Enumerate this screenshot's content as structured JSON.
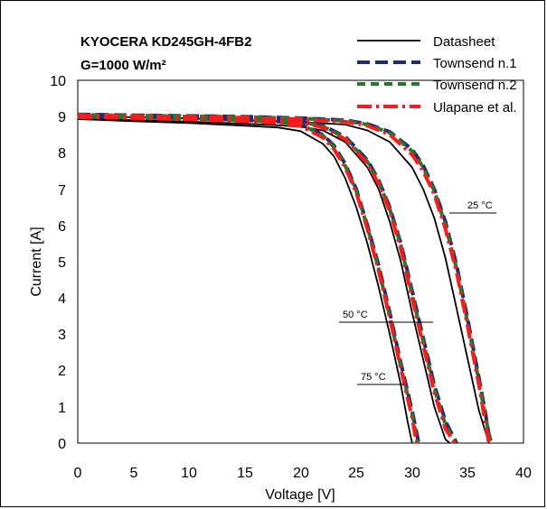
{
  "chart_data": {
    "type": "line",
    "title_lines": [
      "KYOCERA KD245GH-4FB2",
      "G=1000 W/m²"
    ],
    "xlabel": "Voltage [V]",
    "ylabel": "Current [A]",
    "xlim": [
      0,
      40
    ],
    "ylim": [
      0,
      10
    ],
    "x_ticks": [
      "0",
      "5",
      "10",
      "15",
      "20",
      "25",
      "30",
      "35",
      "40"
    ],
    "y_ticks": [
      "0",
      "1",
      "2",
      "3",
      "4",
      "5",
      "6",
      "7",
      "8",
      "9",
      "10"
    ],
    "grid": false,
    "legend_position": "top-right",
    "annotations": [
      "25 °C",
      "50 °C",
      "75 °C"
    ],
    "series": [
      {
        "name": "Datasheet",
        "color": "#000000",
        "style": "solid",
        "curves": [
          {
            "temperature": "25 °C",
            "points": [
              [
                0,
                9.02
              ],
              [
                5,
                8.98
              ],
              [
                10,
                8.95
              ],
              [
                15,
                8.9
              ],
              [
                20,
                8.85
              ],
              [
                24,
                8.78
              ],
              [
                26,
                8.62
              ],
              [
                28,
                8.3
              ],
              [
                30,
                7.6
              ],
              [
                31,
                7.0
              ],
              [
                32,
                6.2
              ],
              [
                33,
                5.1
              ],
              [
                34,
                3.7
              ],
              [
                35,
                2.3
              ],
              [
                36,
                0.9
              ],
              [
                36.9,
                0
              ]
            ]
          },
          {
            "temperature": "50 °C",
            "points": [
              [
                0,
                8.95
              ],
              [
                5,
                8.9
              ],
              [
                10,
                8.86
              ],
              [
                15,
                8.8
              ],
              [
                18,
                8.76
              ],
              [
                20,
                8.72
              ],
              [
                22,
                8.62
              ],
              [
                24,
                8.3
              ],
              [
                26,
                7.6
              ],
              [
                27,
                7.0
              ],
              [
                28,
                6.1
              ],
              [
                29,
                5.0
              ],
              [
                30,
                3.6
              ],
              [
                31,
                2.3
              ],
              [
                32,
                1.0
              ],
              [
                33,
                0.1
              ],
              [
                33.4,
                0
              ]
            ]
          },
          {
            "temperature": "75 °C",
            "points": [
              [
                0,
                8.93
              ],
              [
                5,
                8.87
              ],
              [
                10,
                8.82
              ],
              [
                15,
                8.75
              ],
              [
                18,
                8.7
              ],
              [
                20,
                8.6
              ],
              [
                22,
                8.25
              ],
              [
                23,
                7.9
              ],
              [
                24,
                7.3
              ],
              [
                25,
                6.5
              ],
              [
                26,
                5.5
              ],
              [
                27,
                4.3
              ],
              [
                28,
                3.0
              ],
              [
                29,
                1.6
              ],
              [
                29.6,
                0.6
              ],
              [
                30,
                0
              ]
            ]
          }
        ]
      },
      {
        "name": "Townsend n.1",
        "color": "#1f2a78",
        "style": "dash",
        "curves": [
          {
            "temperature": "25 °C",
            "points": [
              [
                0,
                9.06
              ],
              [
                5,
                9.04
              ],
              [
                10,
                9.02
              ],
              [
                15,
                9.0
              ],
              [
                20,
                8.96
              ],
              [
                24,
                8.9
              ],
              [
                26,
                8.8
              ],
              [
                28,
                8.58
              ],
              [
                30,
                8.1
              ],
              [
                31,
                7.65
              ],
              [
                32,
                7.0
              ],
              [
                33,
                6.1
              ],
              [
                34,
                4.9
              ],
              [
                35,
                3.4
              ],
              [
                36,
                1.8
              ],
              [
                36.6,
                0.8
              ],
              [
                37,
                0
              ]
            ]
          },
          {
            "temperature": "50 °C",
            "points": [
              [
                0,
                9.04
              ],
              [
                5,
                9.02
              ],
              [
                10,
                9.0
              ],
              [
                15,
                8.96
              ],
              [
                18,
                8.93
              ],
              [
                20,
                8.88
              ],
              [
                22,
                8.75
              ],
              [
                24,
                8.45
              ],
              [
                26,
                7.8
              ],
              [
                27,
                7.25
              ],
              [
                28,
                6.5
              ],
              [
                29,
                5.5
              ],
              [
                30,
                4.2
              ],
              [
                31,
                2.9
              ],
              [
                32,
                1.6
              ],
              [
                33,
                0.6
              ],
              [
                34,
                0
              ]
            ]
          },
          {
            "temperature": "75 °C",
            "points": [
              [
                0,
                9.0
              ],
              [
                5,
                8.98
              ],
              [
                10,
                8.95
              ],
              [
                15,
                8.9
              ],
              [
                18,
                8.86
              ],
              [
                20,
                8.8
              ],
              [
                22,
                8.5
              ],
              [
                23,
                8.2
              ],
              [
                24,
                7.7
              ],
              [
                25,
                7.0
              ],
              [
                26,
                6.0
              ],
              [
                27,
                4.9
              ],
              [
                28,
                3.6
              ],
              [
                29,
                2.2
              ],
              [
                30,
                0.9
              ],
              [
                30.6,
                0
              ]
            ]
          }
        ]
      },
      {
        "name": "Townsend n.2",
        "color": "#1f7a2e",
        "style": "dash",
        "curves": [
          {
            "temperature": "25 °C",
            "points": [
              [
                0,
                9.05
              ],
              [
                5,
                9.03
              ],
              [
                10,
                9.01
              ],
              [
                15,
                8.99
              ],
              [
                20,
                8.95
              ],
              [
                24,
                8.88
              ],
              [
                26,
                8.78
              ],
              [
                28,
                8.55
              ],
              [
                30,
                8.05
              ],
              [
                31,
                7.6
              ],
              [
                32,
                6.95
              ],
              [
                33,
                6.0
              ],
              [
                34,
                4.8
              ],
              [
                35,
                3.3
              ],
              [
                36,
                1.7
              ],
              [
                36.6,
                0.7
              ],
              [
                37.1,
                0
              ]
            ]
          },
          {
            "temperature": "50 °C",
            "points": [
              [
                0,
                9.03
              ],
              [
                5,
                9.01
              ],
              [
                10,
                8.99
              ],
              [
                15,
                8.95
              ],
              [
                18,
                8.92
              ],
              [
                20,
                8.87
              ],
              [
                22,
                8.73
              ],
              [
                24,
                8.42
              ],
              [
                26,
                7.75
              ],
              [
                27,
                7.2
              ],
              [
                28,
                6.45
              ],
              [
                29,
                5.45
              ],
              [
                30,
                4.1
              ],
              [
                31,
                2.8
              ],
              [
                32,
                1.5
              ],
              [
                33,
                0.5
              ],
              [
                33.9,
                0
              ]
            ]
          },
          {
            "temperature": "75 °C",
            "points": [
              [
                0,
                8.99
              ],
              [
                5,
                8.97
              ],
              [
                10,
                8.94
              ],
              [
                15,
                8.89
              ],
              [
                18,
                8.85
              ],
              [
                20,
                8.78
              ],
              [
                22,
                8.48
              ],
              [
                23,
                8.15
              ],
              [
                24,
                7.65
              ],
              [
                25,
                6.95
              ],
              [
                26,
                5.95
              ],
              [
                27,
                4.8
              ],
              [
                28,
                3.5
              ],
              [
                29,
                2.1
              ],
              [
                30,
                0.8
              ],
              [
                30.5,
                0
              ]
            ]
          }
        ]
      },
      {
        "name": "Ulapane et al.",
        "color": "#ff1a1a",
        "style": "dashdot",
        "curves": [
          {
            "temperature": "25 °C",
            "points": [
              [
                0,
                9.03
              ],
              [
                5,
                9.02
              ],
              [
                10,
                9.0
              ],
              [
                15,
                8.97
              ],
              [
                20,
                8.93
              ],
              [
                24,
                8.86
              ],
              [
                26,
                8.75
              ],
              [
                28,
                8.5
              ],
              [
                30,
                7.95
              ],
              [
                31,
                7.5
              ],
              [
                32,
                6.85
              ],
              [
                33,
                5.9
              ],
              [
                34,
                4.7
              ],
              [
                35,
                3.2
              ],
              [
                36,
                1.6
              ],
              [
                36.5,
                0.7
              ],
              [
                36.9,
                0
              ]
            ]
          },
          {
            "temperature": "50 °C",
            "points": [
              [
                0,
                9.02
              ],
              [
                5,
                9.0
              ],
              [
                10,
                8.97
              ],
              [
                15,
                8.93
              ],
              [
                18,
                8.9
              ],
              [
                20,
                8.84
              ],
              [
                22,
                8.7
              ],
              [
                24,
                8.38
              ],
              [
                26,
                7.7
              ],
              [
                27,
                7.15
              ],
              [
                28,
                6.4
              ],
              [
                29,
                5.35
              ],
              [
                30,
                4.0
              ],
              [
                31,
                2.7
              ],
              [
                32,
                1.4
              ],
              [
                33,
                0.4
              ],
              [
                33.8,
                0
              ]
            ]
          },
          {
            "temperature": "75 °C",
            "points": [
              [
                0,
                8.98
              ],
              [
                5,
                8.96
              ],
              [
                10,
                8.92
              ],
              [
                15,
                8.87
              ],
              [
                18,
                8.82
              ],
              [
                20,
                8.74
              ],
              [
                22,
                8.42
              ],
              [
                23,
                8.1
              ],
              [
                24,
                7.6
              ],
              [
                25,
                6.9
              ],
              [
                26,
                5.9
              ],
              [
                27,
                4.75
              ],
              [
                28,
                3.45
              ],
              [
                29,
                2.05
              ],
              [
                30,
                0.7
              ],
              [
                30.4,
                0
              ]
            ]
          }
        ]
      }
    ]
  }
}
